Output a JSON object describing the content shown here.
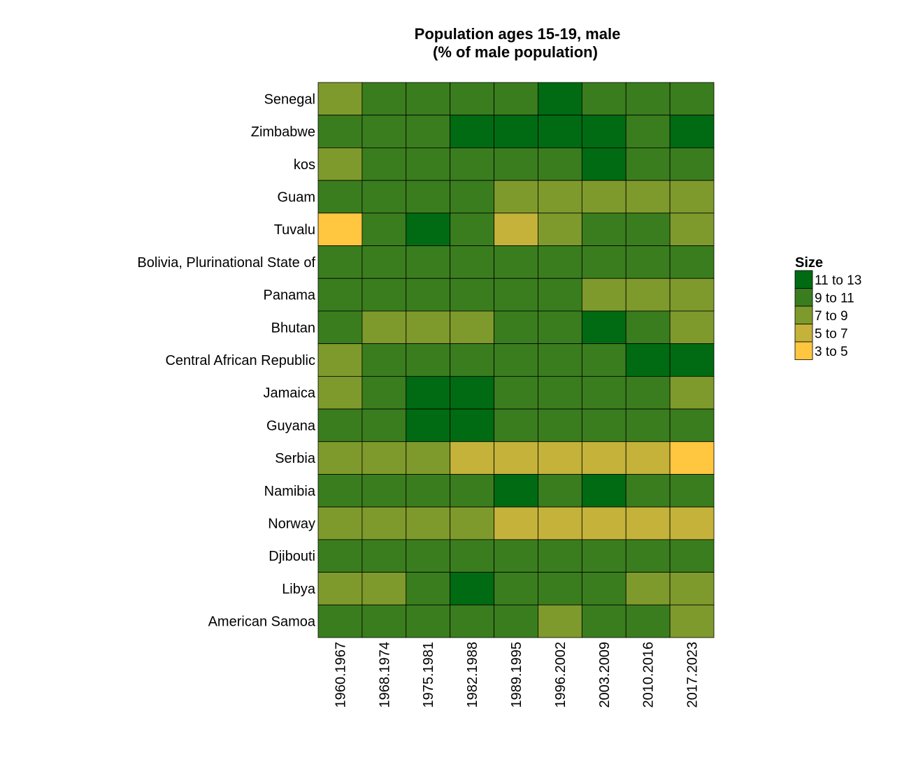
{
  "chart_data": {
    "type": "heatmap",
    "title_line1": "Population ages 15-19, male",
    "title_line2": "(% of male population)",
    "x_categories": [
      "1960.1967",
      "1968.1974",
      "1975.1981",
      "1982.1988",
      "1989.1995",
      "1996.2002",
      "2003.2009",
      "2010.2016",
      "2017.2023"
    ],
    "y_categories": [
      "Senegal",
      "Zimbabwe",
      "kos",
      "Guam",
      "Tuvalu",
      "Bolivia, Plurinational State of",
      "Panama",
      "Bhutan",
      "Central African Republic",
      "Jamaica",
      "Guyana",
      "Serbia",
      "Namibia",
      "Norway",
      "Djibouti",
      "Libya",
      "American Samoa"
    ],
    "legend": {
      "title": "Size",
      "position": "right",
      "bins": [
        {
          "label": "11 to 13",
          "color": "#006B12"
        },
        {
          "label": "9 to 11",
          "color": "#3A7D1E"
        },
        {
          "label": "7 to 9",
          "color": "#7F9A2C"
        },
        {
          "label": "5 to 7",
          "color": "#C4B23A"
        },
        {
          "label": "3 to 5",
          "color": "#FFC640"
        }
      ]
    },
    "cells": [
      [
        "7 to 9",
        "9 to 11",
        "9 to 11",
        "9 to 11",
        "9 to 11",
        "11 to 13",
        "9 to 11",
        "9 to 11",
        "9 to 11"
      ],
      [
        "9 to 11",
        "9 to 11",
        "9 to 11",
        "11 to 13",
        "11 to 13",
        "11 to 13",
        "11 to 13",
        "9 to 11",
        "11 to 13"
      ],
      [
        "7 to 9",
        "9 to 11",
        "9 to 11",
        "9 to 11",
        "9 to 11",
        "9 to 11",
        "11 to 13",
        "9 to 11",
        "9 to 11"
      ],
      [
        "9 to 11",
        "9 to 11",
        "9 to 11",
        "9 to 11",
        "7 to 9",
        "7 to 9",
        "7 to 9",
        "7 to 9",
        "7 to 9"
      ],
      [
        "3 to 5",
        "9 to 11",
        "11 to 13",
        "9 to 11",
        "5 to 7",
        "7 to 9",
        "9 to 11",
        "9 to 11",
        "7 to 9"
      ],
      [
        "9 to 11",
        "9 to 11",
        "9 to 11",
        "9 to 11",
        "9 to 11",
        "9 to 11",
        "9 to 11",
        "9 to 11",
        "9 to 11"
      ],
      [
        "9 to 11",
        "9 to 11",
        "9 to 11",
        "9 to 11",
        "9 to 11",
        "9 to 11",
        "7 to 9",
        "7 to 9",
        "7 to 9"
      ],
      [
        "9 to 11",
        "7 to 9",
        "7 to 9",
        "7 to 9",
        "9 to 11",
        "9 to 11",
        "11 to 13",
        "9 to 11",
        "7 to 9"
      ],
      [
        "7 to 9",
        "9 to 11",
        "9 to 11",
        "9 to 11",
        "9 to 11",
        "9 to 11",
        "9 to 11",
        "11 to 13",
        "11 to 13"
      ],
      [
        "7 to 9",
        "9 to 11",
        "11 to 13",
        "11 to 13",
        "9 to 11",
        "9 to 11",
        "9 to 11",
        "9 to 11",
        "7 to 9"
      ],
      [
        "9 to 11",
        "9 to 11",
        "11 to 13",
        "11 to 13",
        "9 to 11",
        "9 to 11",
        "9 to 11",
        "9 to 11",
        "9 to 11"
      ],
      [
        "7 to 9",
        "7 to 9",
        "7 to 9",
        "5 to 7",
        "5 to 7",
        "5 to 7",
        "5 to 7",
        "5 to 7",
        "3 to 5"
      ],
      [
        "9 to 11",
        "9 to 11",
        "9 to 11",
        "9 to 11",
        "11 to 13",
        "9 to 11",
        "11 to 13",
        "9 to 11",
        "9 to 11"
      ],
      [
        "7 to 9",
        "7 to 9",
        "7 to 9",
        "7 to 9",
        "5 to 7",
        "5 to 7",
        "5 to 7",
        "5 to 7",
        "5 to 7"
      ],
      [
        "9 to 11",
        "9 to 11",
        "9 to 11",
        "9 to 11",
        "9 to 11",
        "9 to 11",
        "9 to 11",
        "9 to 11",
        "9 to 11"
      ],
      [
        "7 to 9",
        "7 to 9",
        "9 to 11",
        "11 to 13",
        "9 to 11",
        "9 to 11",
        "9 to 11",
        "7 to 9",
        "7 to 9"
      ],
      [
        "9 to 11",
        "9 to 11",
        "9 to 11",
        "9 to 11",
        "9 to 11",
        "7 to 9",
        "9 to 11",
        "9 to 11",
        "7 to 9"
      ]
    ]
  }
}
